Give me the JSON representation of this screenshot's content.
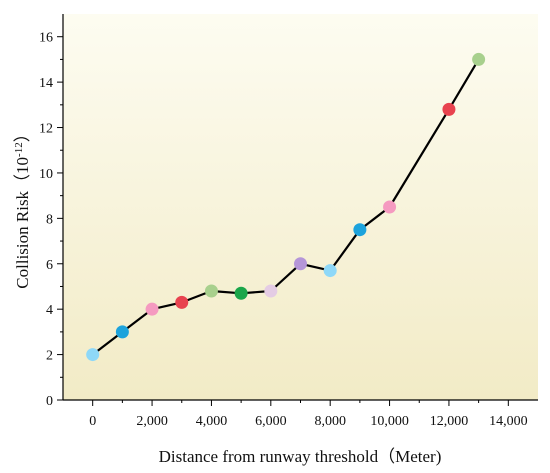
{
  "chart_data": {
    "type": "line",
    "xlabel": "Distance from runway threshold（Meter)",
    "ylabel_main": "Collision Risk（10",
    "ylabel_exp": "-12",
    "ylabel_close": "）",
    "xlim": [
      -1000,
      15000
    ],
    "ylim": [
      0,
      17
    ],
    "x_ticks": [
      0,
      2000,
      4000,
      6000,
      8000,
      10000,
      12000,
      14000
    ],
    "x_tick_labels": [
      "0",
      "2,000",
      "4,000",
      "6,000",
      "8,000",
      "10,000",
      "12,000",
      "14,000"
    ],
    "y_ticks": [
      0,
      2,
      4,
      6,
      8,
      10,
      12,
      14,
      16
    ],
    "y_tick_labels": [
      "0",
      "2",
      "4",
      "6",
      "8",
      "10",
      "12",
      "14",
      "16"
    ],
    "grid": false,
    "background": "gradient cream-yellow",
    "line_color": "#000000",
    "series": [
      {
        "points": [
          {
            "x": 0,
            "y": 2.0,
            "color": "#8ed8f8"
          },
          {
            "x": 1000,
            "y": 3.0,
            "color": "#1ca3dc"
          },
          {
            "x": 2000,
            "y": 4.0,
            "color": "#f59ac0"
          },
          {
            "x": 3000,
            "y": 4.3,
            "color": "#e8434f"
          },
          {
            "x": 4000,
            "y": 4.8,
            "color": "#a8d08d"
          },
          {
            "x": 5000,
            "y": 4.7,
            "color": "#1aa64a"
          },
          {
            "x": 6000,
            "y": 4.8,
            "color": "#e4cce4"
          },
          {
            "x": 7000,
            "y": 6.0,
            "color": "#b596d8"
          },
          {
            "x": 8000,
            "y": 5.7,
            "color": "#8ed8f8"
          },
          {
            "x": 9000,
            "y": 7.5,
            "color": "#1ca3dc"
          },
          {
            "x": 10000,
            "y": 8.5,
            "color": "#f59ac0"
          },
          {
            "x": 12000,
            "y": 12.8,
            "color": "#e8434f"
          },
          {
            "x": 13000,
            "y": 15.0,
            "color": "#a8d08d"
          }
        ]
      }
    ]
  }
}
